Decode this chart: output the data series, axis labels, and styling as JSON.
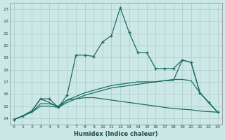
{
  "xlabel": "Humidex (Indice chaleur)",
  "background_color": "#cce8e6",
  "grid_color": "#b0cece",
  "line_color": "#1a6e62",
  "xlim": [
    -0.5,
    23.5
  ],
  "ylim": [
    13.5,
    23.5
  ],
  "xticks": [
    0,
    1,
    2,
    3,
    4,
    5,
    6,
    7,
    8,
    9,
    10,
    11,
    12,
    13,
    14,
    15,
    16,
    17,
    18,
    19,
    20,
    21,
    22,
    23
  ],
  "yticks": [
    14,
    15,
    16,
    17,
    18,
    19,
    20,
    21,
    22,
    23
  ],
  "line1_x": [
    0,
    1,
    2,
    3,
    4,
    5,
    6,
    7,
    8,
    9,
    10,
    11,
    12,
    13,
    14,
    15,
    16,
    17,
    18,
    19,
    20,
    21,
    22,
    23
  ],
  "line1_y": [
    13.9,
    14.2,
    14.6,
    15.6,
    15.6,
    14.9,
    15.9,
    19.2,
    19.2,
    19.1,
    20.3,
    20.8,
    23.1,
    21.1,
    19.4,
    19.4,
    18.1,
    18.1,
    18.1,
    18.8,
    18.6,
    16.1,
    15.3,
    14.5
  ],
  "line2_x": [
    0,
    1,
    2,
    3,
    4,
    5,
    6,
    7,
    8,
    9,
    10,
    11,
    12,
    13,
    14,
    15,
    16,
    17,
    18,
    19,
    20,
    21,
    22,
    23
  ],
  "line2_y": [
    13.9,
    14.2,
    14.6,
    15.6,
    15.3,
    14.9,
    15.5,
    15.6,
    15.7,
    15.7,
    15.6,
    15.5,
    15.4,
    15.3,
    15.2,
    15.1,
    15.0,
    14.9,
    14.8,
    14.75,
    14.7,
    14.6,
    14.55,
    14.5
  ],
  "line3_x": [
    0,
    1,
    2,
    3,
    4,
    5,
    6,
    7,
    8,
    9,
    10,
    11,
    12,
    13,
    14,
    15,
    16,
    17,
    18,
    19,
    20,
    21,
    22,
    23
  ],
  "line3_y": [
    13.9,
    14.2,
    14.5,
    15.2,
    15.2,
    15.0,
    15.5,
    15.8,
    16.1,
    16.3,
    16.5,
    16.7,
    16.8,
    16.9,
    17.0,
    17.0,
    17.0,
    17.1,
    17.1,
    18.8,
    18.6,
    16.1,
    15.3,
    14.5
  ],
  "line4_x": [
    0,
    1,
    2,
    3,
    4,
    5,
    6,
    7,
    8,
    9,
    10,
    11,
    12,
    13,
    14,
    15,
    16,
    17,
    18,
    19,
    20,
    21,
    22,
    23
  ],
  "line4_y": [
    13.9,
    14.2,
    14.5,
    15.0,
    15.0,
    14.9,
    15.3,
    15.6,
    15.9,
    16.1,
    16.3,
    16.5,
    16.6,
    16.7,
    16.8,
    16.9,
    17.0,
    17.1,
    17.2,
    17.2,
    17.1,
    16.1,
    15.3,
    14.5
  ]
}
